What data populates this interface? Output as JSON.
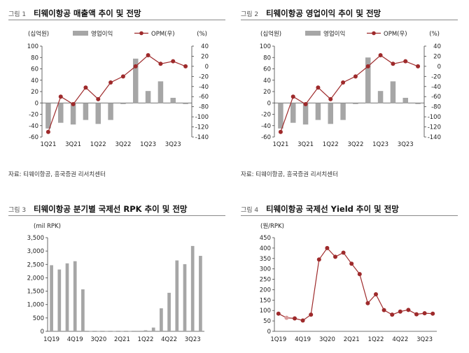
{
  "colors": {
    "bar": "#a6a6a6",
    "line": "#9e2a2b",
    "marker_light": "#d99a9a",
    "axis": "#444444"
  },
  "source": "자료: 티웨이항공, 흥국증권 리서치센터",
  "chart_data": [
    {
      "figure": "그림 1",
      "title": "티웨이항공 매출액 추이 및 전망",
      "type": "bar+line",
      "left_unit": "(십억원)",
      "right_unit": "(%)",
      "legend": [
        "영업이익",
        "OPM(우)"
      ],
      "legend_position": "top-right",
      "categories": [
        "1Q21",
        "2Q21",
        "3Q21",
        "4Q21",
        "1Q22",
        "2Q22",
        "3Q22",
        "4Q22",
        "1Q23",
        "2Q23",
        "3Q23",
        "4Q23"
      ],
      "xtick_labels": [
        "1Q21",
        "3Q21",
        "1Q22",
        "3Q22",
        "1Q23",
        "3Q23"
      ],
      "series": [
        {
          "name": "영업이익",
          "kind": "bar",
          "axis": "left",
          "values": [
            -45,
            -35,
            -38,
            -30,
            -37,
            -30,
            -2,
            78,
            21,
            38,
            9,
            -2
          ]
        },
        {
          "name": "OPM(우)",
          "kind": "line",
          "axis": "right",
          "values": [
            -130,
            -60,
            -75,
            -42,
            -65,
            -32,
            -20,
            0,
            22,
            5,
            10,
            0
          ]
        }
      ],
      "ylim_left": [
        -60,
        100
      ],
      "yticks_left": [
        -60,
        -40,
        -20,
        0,
        20,
        40,
        60,
        80,
        100
      ],
      "ylim_right": [
        -140,
        40
      ],
      "yticks_right": [
        -140,
        -120,
        -100,
        -80,
        -60,
        -40,
        -20,
        0,
        20,
        40
      ]
    },
    {
      "figure": "그림 2",
      "title": "티웨이항공 영업이익 추이 및 전망",
      "type": "bar+line",
      "left_unit": "(십억원)",
      "right_unit": "(%)",
      "legend": [
        "영업이익",
        "OPM(우)"
      ],
      "legend_position": "top-right",
      "categories": [
        "1Q21",
        "2Q21",
        "3Q21",
        "4Q21",
        "1Q22",
        "2Q22",
        "3Q22",
        "4Q22",
        "1Q23",
        "2Q23",
        "3Q23",
        "4Q23"
      ],
      "xtick_labels": [
        "1Q21",
        "3Q21",
        "1Q22",
        "3Q22",
        "1Q23",
        "3Q23"
      ],
      "series": [
        {
          "name": "영업이익",
          "kind": "bar",
          "axis": "left",
          "values": [
            -45,
            -35,
            -38,
            -30,
            -37,
            -30,
            -2,
            80,
            21,
            38,
            9,
            -2
          ]
        },
        {
          "name": "OPM(우)",
          "kind": "line",
          "axis": "right",
          "values": [
            -130,
            -60,
            -75,
            -42,
            -65,
            -32,
            -20,
            0,
            22,
            5,
            10,
            0
          ]
        }
      ],
      "ylim_left": [
        -60,
        100
      ],
      "yticks_left": [
        -60,
        -40,
        -20,
        0,
        20,
        40,
        60,
        80,
        100
      ],
      "ylim_right": [
        -140,
        40
      ],
      "yticks_right": [
        -140,
        -120,
        -100,
        -80,
        -60,
        -40,
        -20,
        0,
        20,
        40
      ]
    },
    {
      "figure": "그림 3",
      "title": "티웨이항공 분기별 국제선 RPK 추이 및 전망",
      "type": "bar",
      "left_unit": "(mil RPK)",
      "categories": [
        "1Q19",
        "2Q19",
        "3Q19",
        "4Q19",
        "1Q20",
        "2Q20",
        "3Q20",
        "4Q20",
        "1Q21",
        "2Q21",
        "3Q21",
        "4Q21",
        "1Q22",
        "2Q22",
        "3Q22",
        "4Q22",
        "1Q23",
        "2Q23",
        "3Q23",
        "4Q23"
      ],
      "xtick_labels": [
        "1Q19",
        "4Q19",
        "3Q20",
        "2Q21",
        "1Q22",
        "4Q22",
        "3Q23"
      ],
      "series": [
        {
          "name": "",
          "kind": "bar",
          "axis": "left",
          "values": [
            2470,
            2310,
            2540,
            2620,
            1570,
            10,
            10,
            10,
            10,
            10,
            10,
            20,
            40,
            140,
            860,
            1440,
            2650,
            2510,
            3190,
            2820
          ]
        }
      ],
      "ylim_left": [
        0,
        3500
      ],
      "yticks_left": [
        0,
        500,
        1000,
        1500,
        2000,
        2500,
        3000,
        3500
      ],
      "ytick_format": "comma"
    },
    {
      "figure": "그림 4",
      "title": "티웨이항공 국제선 Yield 추이 및 전망",
      "type": "line",
      "left_unit": "(원/RPK)",
      "categories": [
        "1Q19",
        "2Q19",
        "3Q19",
        "4Q19",
        "1Q20",
        "2Q20",
        "3Q20",
        "4Q20",
        "1Q21",
        "2Q21",
        "3Q21",
        "4Q21",
        "1Q22",
        "2Q22",
        "3Q22",
        "4Q22",
        "1Q23",
        "2Q23",
        "3Q23",
        "4Q23"
      ],
      "xtick_labels": [
        "1Q19",
        "4Q19",
        "3Q20",
        "2Q21",
        "1Q22",
        "4Q22",
        "3Q23"
      ],
      "series": [
        {
          "name": "",
          "kind": "line",
          "axis": "left",
          "values": [
            85,
            65,
            62,
            52,
            80,
            345,
            400,
            358,
            378,
            325,
            275,
            135,
            178,
            102,
            80,
            95,
            103,
            82,
            87,
            85
          ]
        }
      ],
      "ylim_left": [
        0,
        450
      ],
      "yticks_left": [
        0,
        50,
        100,
        150,
        200,
        250,
        300,
        350,
        400,
        450
      ]
    }
  ]
}
